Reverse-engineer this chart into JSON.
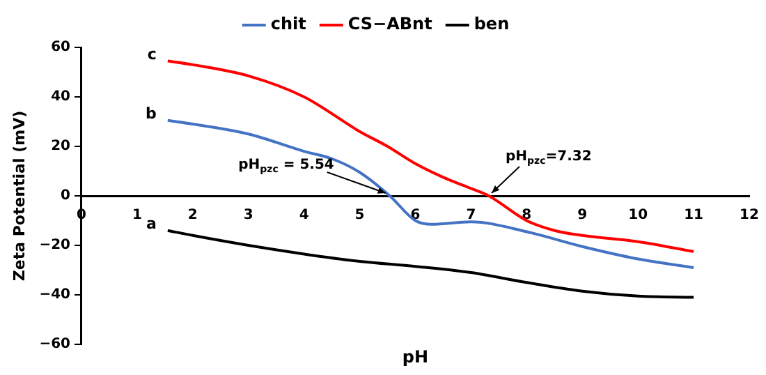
{
  "chart_data": {
    "type": "line",
    "xlabel": "pH",
    "ylabel": "Zeta Potential (mV)",
    "xlim": [
      0,
      12
    ],
    "xticks": [
      0,
      1,
      2,
      3,
      4,
      5,
      6,
      7,
      8,
      9,
      10,
      11,
      12
    ],
    "ylim": [
      -60,
      60
    ],
    "yticks": [
      {
        "value": -60,
        "label": "−60"
      },
      {
        "value": -40,
        "label": "−40"
      },
      {
        "value": -20,
        "label": "−20"
      },
      0,
      20,
      40,
      60
    ],
    "grid": false,
    "legend": "top",
    "marker": "none",
    "line_style": "solid",
    "series": [
      {
        "name": "chit",
        "color": "#4472c4",
        "x": [
          1.55,
          2,
          3,
          4,
          4.5,
          5,
          5.54,
          6,
          6.3,
          7,
          8,
          9,
          10,
          11
        ],
        "values": [
          30.5,
          29,
          25,
          18,
          15,
          9.5,
          0,
          -10,
          -11.5,
          -10.5,
          -14.5,
          -20.5,
          -25.5,
          -29
        ]
      },
      {
        "name": "CS−ABnt",
        "color": "#ff0000",
        "x": [
          1.55,
          2,
          3,
          4,
          5,
          5.5,
          6,
          6.5,
          7,
          7.32,
          8,
          8.5,
          9,
          10,
          11
        ],
        "values": [
          54.5,
          53,
          48.5,
          40,
          26,
          20,
          13,
          7.5,
          3,
          0,
          -10,
          -14,
          -16,
          -18.5,
          -22.5
        ]
      },
      {
        "name": "ben",
        "color": "#000000",
        "x": [
          1.55,
          2,
          3,
          4,
          5,
          6,
          7,
          8,
          9,
          10,
          11
        ],
        "values": [
          -14,
          -16,
          -20,
          -23.5,
          -26.5,
          -28.5,
          -31,
          -35,
          -38.5,
          -40.5,
          -41
        ]
      }
    ],
    "annotations": [
      {
        "text": "pH$_{pzc}$ = 5.54",
        "x": 5.54,
        "y": 0
      },
      {
        "text": "pH$_{pzc}$=7.32",
        "x": 7.32,
        "y": 0
      },
      {
        "text": "a",
        "x": 1.55,
        "y": -14
      },
      {
        "text": "b",
        "x": 1.55,
        "y": 30.5
      },
      {
        "text": "c",
        "x": 1.55,
        "y": 54.5
      }
    ]
  }
}
